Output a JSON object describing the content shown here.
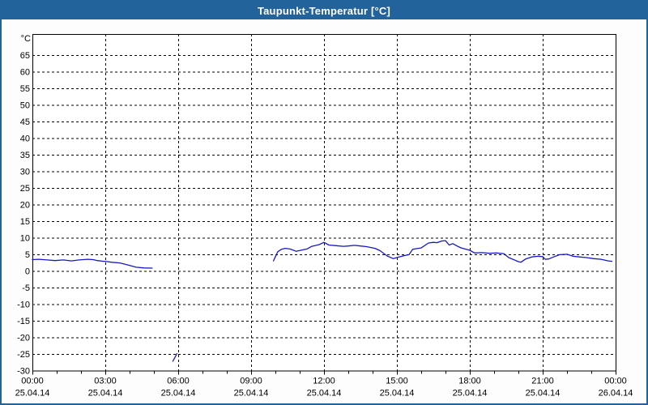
{
  "window": {
    "title": "Taupunkt-Temperatur [°C]"
  },
  "colors": {
    "titlebar_bg": "#21639A",
    "window_border": "#21639A",
    "title_text": "#FFFFFF",
    "content_bg": "#FDFDFD",
    "plot_bg": "#FFFFFF",
    "axis_line": "#000000",
    "grid_line": "#000000",
    "axis_text": "#000000",
    "series_line": "#1818C2"
  },
  "chart_data": {
    "type": "line",
    "title": "Taupunkt-Temperatur [°C]",
    "ylabel": "°C",
    "xlabel": "",
    "ylim": [
      -30,
      71.3
    ],
    "xlim_hours": [
      0,
      24
    ],
    "grid": "dashed",
    "legend_position": "none",
    "y_ticks": [
      65,
      60,
      55,
      50,
      45,
      40,
      35,
      30,
      25,
      20,
      15,
      10,
      5,
      0,
      -5,
      -10,
      -15,
      -20,
      -25,
      -30
    ],
    "x_ticks": [
      {
        "hour": 0,
        "time": "00:00",
        "date": "25.04.14"
      },
      {
        "hour": 3,
        "time": "03:00",
        "date": "25.04.14"
      },
      {
        "hour": 6,
        "time": "06:00",
        "date": "25.04.14"
      },
      {
        "hour": 9,
        "time": "09:00",
        "date": "25.04.14"
      },
      {
        "hour": 12,
        "time": "12:00",
        "date": "25.04.14"
      },
      {
        "hour": 15,
        "time": "15:00",
        "date": "25.04.14"
      },
      {
        "hour": 18,
        "time": "18:00",
        "date": "25.04.14"
      },
      {
        "hour": 21,
        "time": "21:00",
        "date": "25.04.14"
      },
      {
        "hour": 24,
        "time": "00:00",
        "date": "26.04.14"
      }
    ],
    "minor_tick_every_hours": 1,
    "series": [
      {
        "name": "Taupunkt-Temperatur",
        "unit": "°C",
        "color": "#1818C2",
        "segments": [
          [
            [
              0.0,
              3.4
            ],
            [
              0.27,
              3.5
            ],
            [
              0.6,
              3.3
            ],
            [
              0.93,
              3.1
            ],
            [
              1.27,
              3.3
            ],
            [
              1.6,
              3.0
            ],
            [
              1.93,
              3.3
            ],
            [
              2.27,
              3.5
            ],
            [
              2.5,
              3.4
            ],
            [
              2.67,
              3.1
            ],
            [
              2.93,
              2.9
            ],
            [
              3.0,
              2.9
            ],
            [
              3.27,
              2.6
            ],
            [
              3.6,
              2.4
            ],
            [
              3.93,
              1.8
            ],
            [
              4.27,
              1.1
            ],
            [
              4.6,
              0.9
            ],
            [
              4.93,
              0.85
            ]
          ],
          [
            [
              5.78,
              -27.2
            ],
            [
              5.95,
              -24.9
            ]
          ],
          [
            [
              9.92,
              3.0
            ],
            [
              10.0,
              4.3
            ],
            [
              10.1,
              5.8
            ],
            [
              10.25,
              6.5
            ],
            [
              10.4,
              6.8
            ],
            [
              10.6,
              6.6
            ],
            [
              10.85,
              5.9
            ],
            [
              11.1,
              6.3
            ],
            [
              11.3,
              6.6
            ],
            [
              11.5,
              7.4
            ],
            [
              11.8,
              7.9
            ],
            [
              12.0,
              8.6
            ],
            [
              12.2,
              7.8
            ],
            [
              12.5,
              7.6
            ],
            [
              12.8,
              7.4
            ],
            [
              13.0,
              7.5
            ],
            [
              13.25,
              7.7
            ],
            [
              13.5,
              7.5
            ],
            [
              13.75,
              7.3
            ],
            [
              14.1,
              6.8
            ],
            [
              14.3,
              6.1
            ],
            [
              14.6,
              4.5
            ],
            [
              14.85,
              3.7
            ],
            [
              15.0,
              4.0
            ],
            [
              15.3,
              4.6
            ],
            [
              15.5,
              4.9
            ],
            [
              15.65,
              6.5
            ],
            [
              15.8,
              6.7
            ],
            [
              16.0,
              6.9
            ],
            [
              16.3,
              8.4
            ],
            [
              16.5,
              8.6
            ],
            [
              16.65,
              8.5
            ],
            [
              16.85,
              9.0
            ],
            [
              17.0,
              9.1
            ],
            [
              17.15,
              7.8
            ],
            [
              17.3,
              8.2
            ],
            [
              17.5,
              7.4
            ],
            [
              17.65,
              6.9
            ],
            [
              17.85,
              6.5
            ],
            [
              18.0,
              6.2
            ],
            [
              18.2,
              5.4
            ],
            [
              18.5,
              5.5
            ],
            [
              18.8,
              5.3
            ],
            [
              19.1,
              5.4
            ],
            [
              19.4,
              5.2
            ],
            [
              19.6,
              4.0
            ],
            [
              20.0,
              2.8
            ],
            [
              20.1,
              2.6
            ],
            [
              20.3,
              3.6
            ],
            [
              20.55,
              4.2
            ],
            [
              20.8,
              4.4
            ],
            [
              21.0,
              4.3
            ],
            [
              21.1,
              3.5
            ],
            [
              21.25,
              3.6
            ],
            [
              21.45,
              4.2
            ],
            [
              21.7,
              4.9
            ],
            [
              22.0,
              5.0
            ],
            [
              22.25,
              4.4
            ],
            [
              22.5,
              4.2
            ],
            [
              22.8,
              4.0
            ],
            [
              23.1,
              3.7
            ],
            [
              23.4,
              3.5
            ],
            [
              23.7,
              3.0
            ],
            [
              23.85,
              2.9
            ]
          ]
        ]
      }
    ]
  }
}
